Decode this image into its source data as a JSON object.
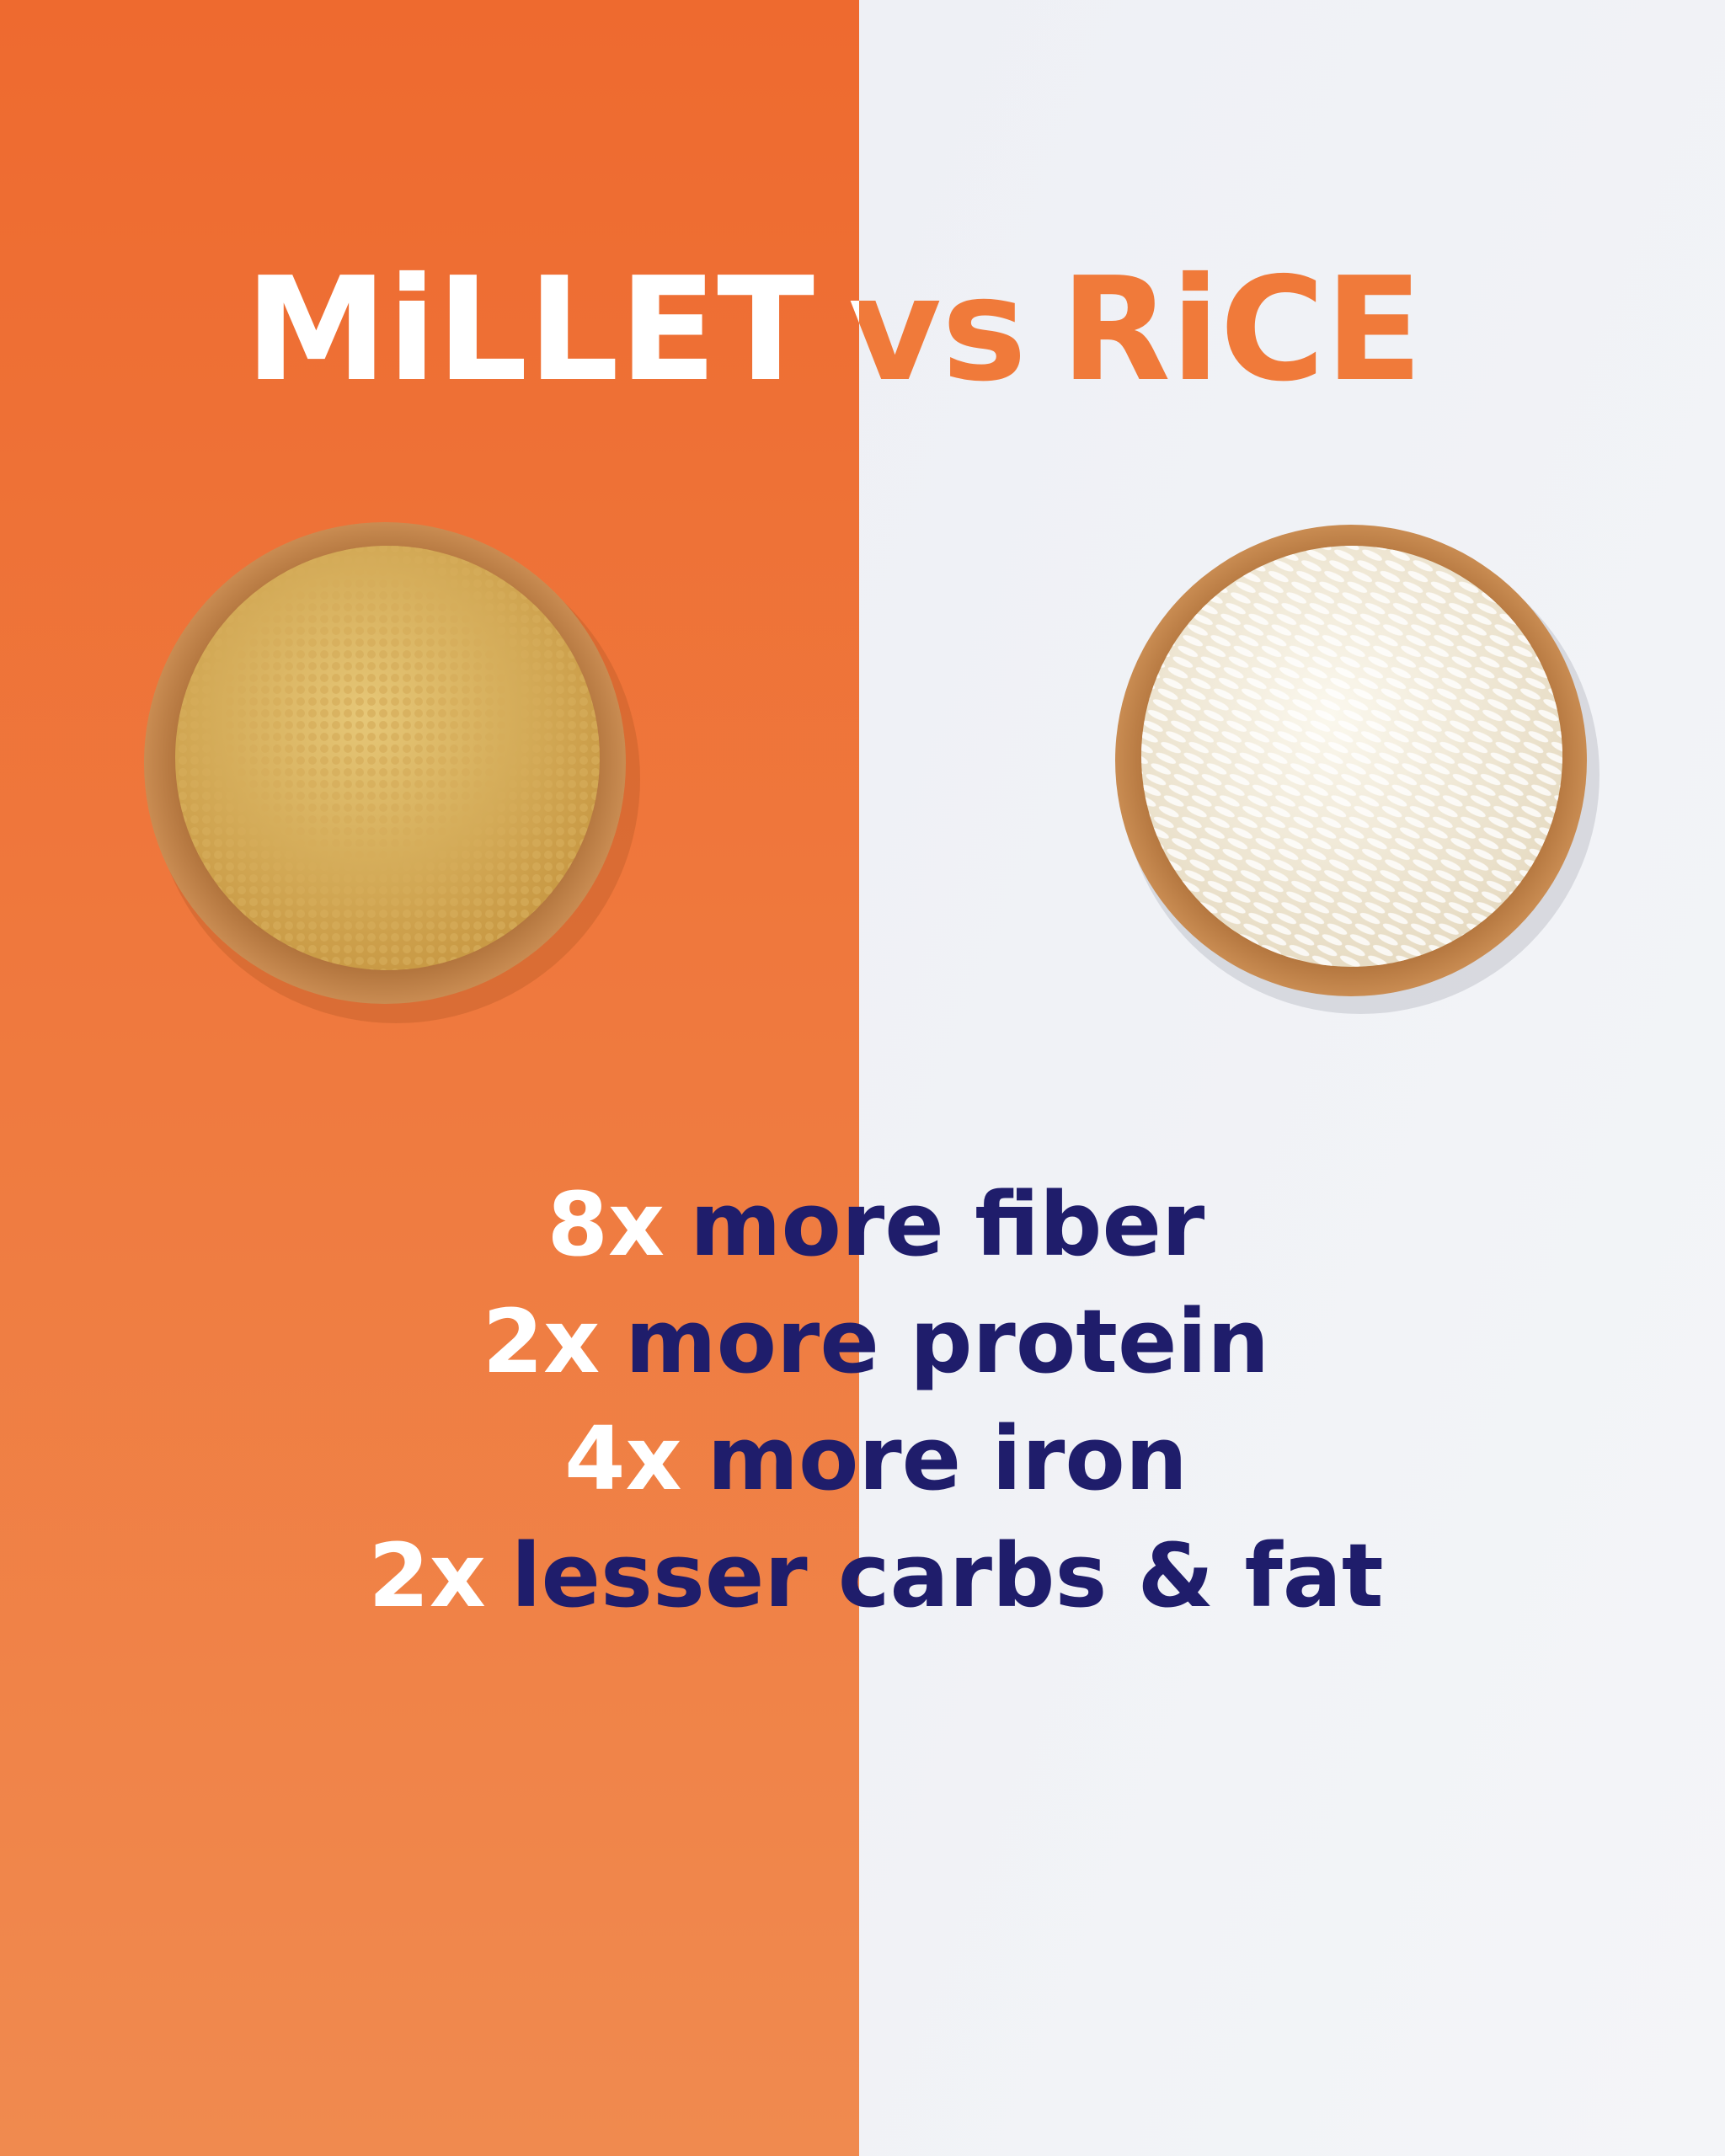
{
  "title": {
    "left": "MiLLET",
    "middle": "vs",
    "right": "RiCE"
  },
  "comparisons": [
    {
      "factor": "8x",
      "text": "more fiber"
    },
    {
      "factor": "2x",
      "text": "more protein"
    },
    {
      "factor": "4x",
      "text": "more iron"
    },
    {
      "factor": "2x",
      "text": "lesser carbs & fat"
    }
  ]
}
